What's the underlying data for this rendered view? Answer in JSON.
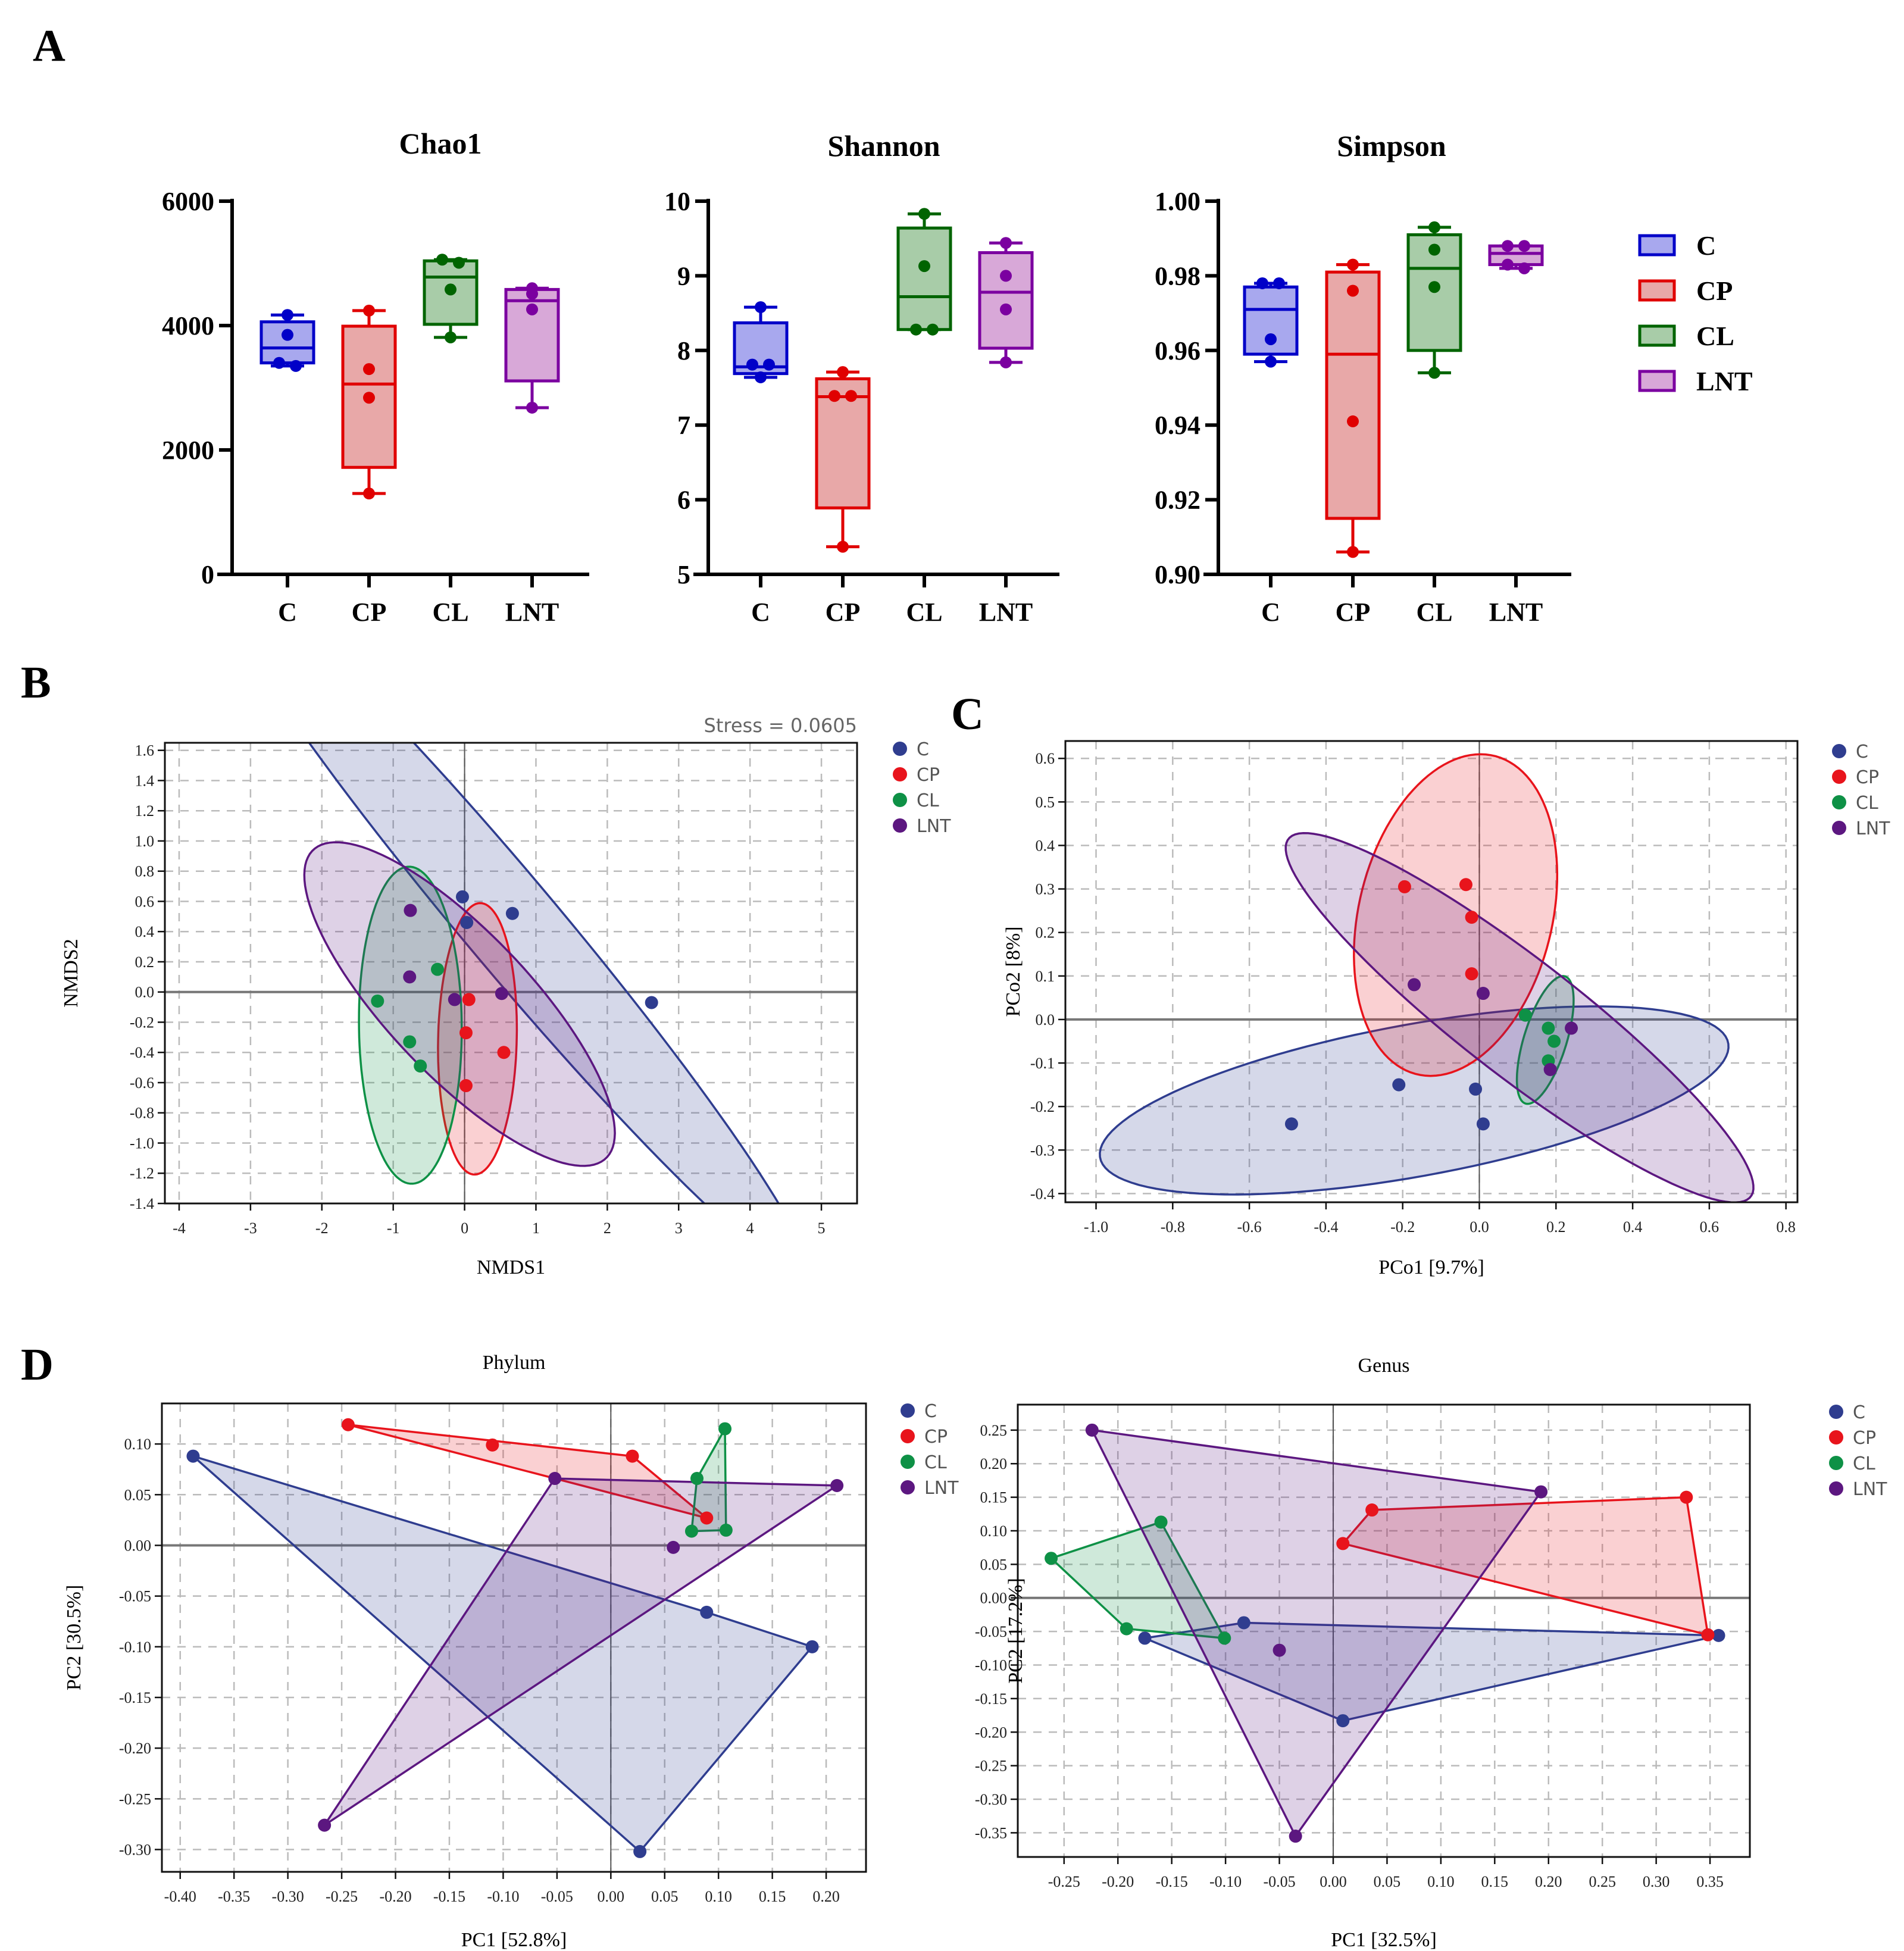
{
  "panel_labels": {
    "a": "A",
    "b": "B",
    "c": "C",
    "d": "D"
  },
  "colors": {
    "C": "#0000c8",
    "CP": "#e00000",
    "CL": "#006400",
    "LNT": "#7b00a0",
    "C_fill": "#a8a8ee",
    "CP_fill": "#e8a8a8",
    "CL_fill": "#a8cca8",
    "LNT_fill": "#d8a8d8",
    "ord_C": "#2f3d8f",
    "ord_CP": "#e8141c",
    "ord_CL": "#0e9146",
    "ord_LNT": "#5c1780"
  },
  "groups": [
    "C",
    "CP",
    "CL",
    "LNT"
  ],
  "chart_data": [
    {
      "id": "chao1",
      "type": "box",
      "title": "Chao1",
      "categories": [
        "C",
        "CP",
        "CL",
        "LNT"
      ],
      "ylim": [
        0,
        6000
      ],
      "yticks": [
        0,
        2000,
        4000,
        6000
      ],
      "ytick_labels": [
        "0",
        "2000",
        "4000",
        "6000"
      ],
      "boxes": [
        {
          "group": "C",
          "min": 3350,
          "q1": 3400,
          "median": 3640,
          "q3": 4060,
          "max": 4170,
          "points": [
            4170,
            3850,
            3400,
            3350
          ]
        },
        {
          "group": "CP",
          "min": 1300,
          "q1": 1720,
          "median": 3060,
          "q3": 3990,
          "max": 4240,
          "points": [
            4240,
            3300,
            2840,
            1300
          ]
        },
        {
          "group": "CL",
          "min": 3810,
          "q1": 4020,
          "median": 4780,
          "q3": 5040,
          "max": 5060,
          "points": [
            5060,
            5010,
            4580,
            3810
          ]
        },
        {
          "group": "LNT",
          "min": 2680,
          "q1": 3110,
          "median": 4400,
          "q3": 4580,
          "max": 4600,
          "points": [
            4600,
            4510,
            4260,
            2680
          ]
        }
      ]
    },
    {
      "id": "shannon",
      "type": "box",
      "title": "Shannon",
      "categories": [
        "C",
        "CP",
        "CL",
        "LNT"
      ],
      "ylim": [
        5,
        10
      ],
      "yticks": [
        5,
        6,
        7,
        8,
        9,
        10
      ],
      "ytick_labels": [
        "5",
        "6",
        "7",
        "8",
        "9",
        "10"
      ],
      "boxes": [
        {
          "group": "C",
          "min": 7.64,
          "q1": 7.69,
          "median": 7.78,
          "q3": 8.37,
          "max": 8.58,
          "points": [
            8.58,
            7.81,
            7.81,
            7.64
          ]
        },
        {
          "group": "CP",
          "min": 5.37,
          "q1": 5.89,
          "median": 7.38,
          "q3": 7.62,
          "max": 7.71,
          "points": [
            7.71,
            7.39,
            7.39,
            5.37
          ]
        },
        {
          "group": "CL",
          "min": 8.28,
          "q1": 8.28,
          "median": 8.72,
          "q3": 9.64,
          "max": 9.83,
          "points": [
            9.83,
            9.13,
            8.28,
            8.28
          ]
        },
        {
          "group": "LNT",
          "min": 7.84,
          "q1": 8.03,
          "median": 8.78,
          "q3": 9.31,
          "max": 9.44,
          "points": [
            9.44,
            9.0,
            8.55,
            7.84
          ]
        }
      ]
    },
    {
      "id": "simpson",
      "type": "box",
      "title": "Simpson",
      "categories": [
        "C",
        "CP",
        "CL",
        "LNT"
      ],
      "ylim": [
        0.9,
        1.0
      ],
      "yticks": [
        0.9,
        0.92,
        0.94,
        0.96,
        0.98,
        1.0
      ],
      "ytick_labels": [
        "0.90",
        "0.92",
        "0.94",
        "0.96",
        "0.98",
        "1.00"
      ],
      "boxes": [
        {
          "group": "C",
          "min": 0.957,
          "q1": 0.959,
          "median": 0.971,
          "q3": 0.977,
          "max": 0.978,
          "points": [
            0.978,
            0.978,
            0.963,
            0.957
          ]
        },
        {
          "group": "CP",
          "min": 0.906,
          "q1": 0.915,
          "median": 0.959,
          "q3": 0.981,
          "max": 0.983,
          "points": [
            0.983,
            0.976,
            0.941,
            0.906
          ]
        },
        {
          "group": "CL",
          "min": 0.954,
          "q1": 0.96,
          "median": 0.982,
          "q3": 0.991,
          "max": 0.993,
          "points": [
            0.993,
            0.987,
            0.977,
            0.954
          ]
        },
        {
          "group": "LNT",
          "min": 0.982,
          "q1": 0.983,
          "median": 0.986,
          "q3": 0.988,
          "max": 0.988,
          "points": [
            0.988,
            0.988,
            0.983,
            0.982
          ]
        }
      ],
      "legend": [
        "C",
        "CP",
        "CL",
        "LNT"
      ]
    },
    {
      "id": "nmds",
      "type": "scatter",
      "xlabel": "NMDS1",
      "ylabel": "NMDS2",
      "annotation": "Stress = 0.0605",
      "xlim": [
        -4.2,
        5.5
      ],
      "ylim": [
        -1.4,
        1.65
      ],
      "xticks": [
        -4,
        -3,
        -2,
        -1,
        0,
        1,
        2,
        3,
        4,
        5
      ],
      "yticks": [
        -1.4,
        -1.2,
        -1.0,
        -0.8,
        -0.6,
        -0.4,
        -0.2,
        0.0,
        0.2,
        0.4,
        0.6,
        0.8,
        1.0,
        1.2,
        1.4,
        1.6
      ],
      "ytick_labels": [
        "-1.4",
        "-1.2",
        "-1.0",
        "-0.8",
        "-0.6",
        "-0.4",
        "-0.2",
        "0.0",
        "0.2",
        "0.4",
        "0.6",
        "0.8",
        "1.0",
        "1.2",
        "1.4",
        "1.6"
      ],
      "grid": true,
      "legend": "top-right",
      "series": [
        {
          "name": "C",
          "points": [
            [
              -0.03,
              0.63
            ],
            [
              0.03,
              0.46
            ],
            [
              0.67,
              0.52
            ],
            [
              2.62,
              -0.07
            ]
          ],
          "ellipse": {
            "cx": 0.65,
            "cy": 0.45,
            "rx": 4.75,
            "ry": 0.42,
            "angle_deg": -29
          }
        },
        {
          "name": "CP",
          "points": [
            [
              0.06,
              -0.05
            ],
            [
              0.02,
              -0.27
            ],
            [
              0.55,
              -0.4
            ],
            [
              0.02,
              -0.62
            ]
          ],
          "ellipse": {
            "cx": 0.18,
            "cy": -0.31,
            "rx": 0.55,
            "ry": 0.9,
            "angle_deg": -4
          }
        },
        {
          "name": "CL",
          "points": [
            [
              -1.22,
              -0.06
            ],
            [
              -0.38,
              0.15
            ],
            [
              -0.77,
              -0.33
            ],
            [
              -0.62,
              -0.49
            ]
          ],
          "ellipse": {
            "cx": -0.76,
            "cy": -0.22,
            "rx": 0.72,
            "ry": 1.05,
            "angle_deg": 2
          }
        },
        {
          "name": "LNT",
          "points": [
            [
              -0.76,
              0.54
            ],
            [
              -0.77,
              0.1
            ],
            [
              -0.14,
              -0.05
            ],
            [
              0.52,
              -0.01
            ]
          ],
          "ellipse": {
            "cx": -0.07,
            "cy": -0.08,
            "rx": 2.35,
            "ry": 0.6,
            "angle_deg": -23
          }
        }
      ]
    },
    {
      "id": "pcoa",
      "type": "scatter",
      "xlabel": "PCo1 [9.7%]",
      "ylabel": "PCo2 [8%]",
      "xlim": [
        -1.08,
        0.83
      ],
      "ylim": [
        -0.42,
        0.64
      ],
      "xticks": [
        -1.0,
        -0.8,
        -0.6,
        -0.4,
        -0.2,
        0.0,
        0.2,
        0.4,
        0.6,
        0.8
      ],
      "xtick_labels": [
        "-1.0",
        "-0.8",
        "-0.6",
        "-0.4",
        "-0.2",
        "0.0",
        "0.2",
        "0.4",
        "0.6",
        "0.8"
      ],
      "yticks": [
        -0.4,
        -0.3,
        -0.2,
        -0.1,
        0.0,
        0.1,
        0.2,
        0.3,
        0.4,
        0.5,
        0.6
      ],
      "ytick_labels": [
        "-0.4",
        "-0.3",
        "-0.2",
        "-0.1",
        "0.0",
        "0.1",
        "0.2",
        "0.3",
        "0.4",
        "0.5",
        "0.6"
      ],
      "grid": true,
      "legend": "top-right",
      "series": [
        {
          "name": "C",
          "points": [
            [
              -0.49,
              -0.24
            ],
            [
              -0.21,
              -0.15
            ],
            [
              -0.01,
              -0.16
            ],
            [
              0.01,
              -0.24
            ]
          ],
          "ellipse": {
            "cx": -0.17,
            "cy": -0.186,
            "rx": 0.83,
            "ry": 0.175,
            "angle_deg": 9
          }
        },
        {
          "name": "CP",
          "points": [
            [
              -0.195,
              0.305
            ],
            [
              -0.035,
              0.31
            ],
            [
              -0.02,
              0.235
            ],
            [
              -0.02,
              0.105
            ]
          ],
          "ellipse": {
            "cx": -0.062,
            "cy": 0.24,
            "rx": 0.25,
            "ry": 0.38,
            "angle_deg": -18
          }
        },
        {
          "name": "CL",
          "points": [
            [
              0.12,
              0.01
            ],
            [
              0.18,
              -0.02
            ],
            [
              0.195,
              -0.05
            ],
            [
              0.18,
              -0.095
            ]
          ],
          "ellipse": {
            "cx": 0.172,
            "cy": -0.047,
            "rx": 0.055,
            "ry": 0.155,
            "angle_deg": -20
          }
        },
        {
          "name": "LNT",
          "points": [
            [
              -0.17,
              0.08
            ],
            [
              0.01,
              0.06
            ],
            [
              0.24,
              -0.02
            ],
            [
              0.185,
              -0.115
            ]
          ],
          "ellipse": {
            "cx": 0.105,
            "cy": 0.004,
            "rx": 0.73,
            "ry": 0.14,
            "angle_deg": -34
          }
        }
      ]
    },
    {
      "id": "pca_phylum",
      "type": "scatter",
      "title": "Phylum",
      "xlabel": "PC1 [52.8%]",
      "ylabel": "PC2 [30.5%]",
      "xlim": [
        -0.417,
        0.237
      ],
      "ylim": [
        -0.322,
        0.14
      ],
      "xticks": [
        -0.4,
        -0.35,
        -0.3,
        -0.25,
        -0.2,
        -0.15,
        -0.1,
        -0.05,
        0.0,
        0.05,
        0.1,
        0.15,
        0.2
      ],
      "xtick_labels": [
        "-0.40",
        "-0.35",
        "-0.30",
        "-0.25",
        "-0.20",
        "-0.15",
        "-0.10",
        "-0.05",
        "0.00",
        "0.05",
        "0.10",
        "0.15",
        "0.20"
      ],
      "yticks": [
        -0.3,
        -0.25,
        -0.2,
        -0.15,
        -0.1,
        -0.05,
        0.0,
        0.05,
        0.1
      ],
      "ytick_labels": [
        "-0.30",
        "-0.25",
        "-0.20",
        "-0.15",
        "-0.10",
        "-0.05",
        "0.00",
        "0.05",
        "0.10"
      ],
      "grid": true,
      "legend": "top-right",
      "series": [
        {
          "name": "C",
          "points": [
            [
              -0.388,
              0.088
            ],
            [
              0.089,
              -0.066
            ],
            [
              0.187,
              -0.1
            ],
            [
              0.027,
              -0.302
            ]
          ],
          "hull": [
            [
              -0.388,
              0.088
            ],
            [
              0.089,
              -0.066
            ],
            [
              0.187,
              -0.1
            ],
            [
              0.027,
              -0.302
            ]
          ]
        },
        {
          "name": "CP",
          "points": [
            [
              -0.244,
              0.119
            ],
            [
              -0.11,
              0.099
            ],
            [
              0.02,
              0.088
            ],
            [
              0.089,
              0.027
            ]
          ],
          "hull": [
            [
              -0.244,
              0.119
            ],
            [
              0.02,
              0.088
            ],
            [
              0.089,
              0.027
            ],
            [
              -0.052,
              0.066
            ]
          ]
        },
        {
          "name": "CL",
          "points": [
            [
              0.106,
              0.115
            ],
            [
              0.08,
              0.066
            ],
            [
              0.075,
              0.014
            ],
            [
              0.107,
              0.015
            ]
          ],
          "hull": [
            [
              0.106,
              0.115
            ],
            [
              0.107,
              0.015
            ],
            [
              0.075,
              0.014
            ],
            [
              0.08,
              0.066
            ]
          ]
        },
        {
          "name": "LNT",
          "points": [
            [
              -0.052,
              0.066
            ],
            [
              0.21,
              0.059
            ],
            [
              0.058,
              -0.002
            ],
            [
              -0.266,
              -0.276
            ]
          ],
          "hull": [
            [
              -0.052,
              0.066
            ],
            [
              0.21,
              0.059
            ],
            [
              -0.266,
              -0.276
            ]
          ]
        }
      ]
    },
    {
      "id": "pca_genus",
      "type": "scatter",
      "title": "Genus",
      "xlabel": "PC1 [32.5%]",
      "ylabel": "PC2 [17.2%]",
      "xlim": [
        -0.293,
        0.387
      ],
      "ylim": [
        -0.386,
        0.288
      ],
      "xticks": [
        -0.25,
        -0.2,
        -0.15,
        -0.1,
        -0.05,
        0.0,
        0.05,
        0.1,
        0.15,
        0.2,
        0.25,
        0.3,
        0.35
      ],
      "xtick_labels": [
        "-0.25",
        "-0.20",
        "-0.15",
        "-0.10",
        "-0.05",
        "0.00",
        "0.05",
        "0.10",
        "0.15",
        "0.20",
        "0.25",
        "0.30",
        "0.35"
      ],
      "yticks": [
        -0.35,
        -0.3,
        -0.25,
        -0.2,
        -0.15,
        -0.1,
        -0.05,
        0.0,
        0.05,
        0.1,
        0.15,
        0.2,
        0.25
      ],
      "ytick_labels": [
        "-0.35",
        "-0.30",
        "-0.25",
        "-0.20",
        "-0.15",
        "-0.10",
        "-0.05",
        "0.00",
        "0.05",
        "0.10",
        "0.15",
        "0.20",
        "0.25"
      ],
      "grid": true,
      "legend": "top-right",
      "series": [
        {
          "name": "C",
          "points": [
            [
              -0.175,
              -0.06
            ],
            [
              -0.083,
              -0.037
            ],
            [
              0.009,
              -0.183
            ],
            [
              0.358,
              -0.056
            ]
          ],
          "hull": [
            [
              -0.175,
              -0.06
            ],
            [
              -0.083,
              -0.037
            ],
            [
              0.358,
              -0.056
            ],
            [
              0.009,
              -0.183
            ]
          ]
        },
        {
          "name": "CP",
          "points": [
            [
              0.036,
              0.131
            ],
            [
              0.009,
              0.081
            ],
            [
              0.328,
              0.15
            ],
            [
              0.348,
              -0.055
            ]
          ],
          "hull": [
            [
              0.036,
              0.131
            ],
            [
              0.328,
              0.15
            ],
            [
              0.348,
              -0.055
            ],
            [
              0.009,
              0.081
            ]
          ]
        },
        {
          "name": "CL",
          "points": [
            [
              -0.262,
              0.059
            ],
            [
              -0.16,
              0.113
            ],
            [
              -0.192,
              -0.046
            ],
            [
              -0.101,
              -0.06
            ]
          ],
          "hull": [
            [
              -0.262,
              0.059
            ],
            [
              -0.16,
              0.113
            ],
            [
              -0.101,
              -0.06
            ],
            [
              -0.192,
              -0.046
            ]
          ]
        },
        {
          "name": "LNT",
          "points": [
            [
              -0.224,
              0.25
            ],
            [
              0.193,
              0.158
            ],
            [
              -0.05,
              -0.078
            ],
            [
              -0.035,
              -0.355
            ]
          ],
          "hull": [
            [
              -0.224,
              0.25
            ],
            [
              0.193,
              0.158
            ],
            [
              -0.035,
              -0.355
            ]
          ]
        }
      ]
    }
  ]
}
